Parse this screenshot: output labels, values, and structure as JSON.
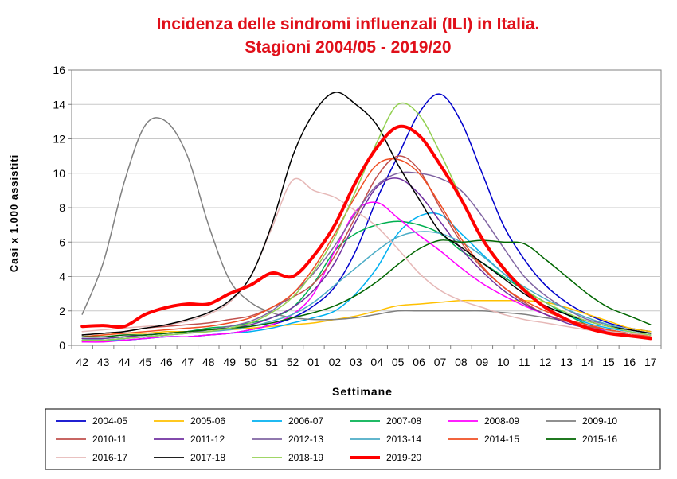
{
  "chart_data": {
    "type": "line",
    "title": "Incidenza delle sindromi influenzali (ILI) in Italia.",
    "subtitle": "Stagioni 2004/05 - 2019/20",
    "xlabel": "Settimane",
    "ylabel": "Casi x 1.000 assistiti",
    "categories": [
      "42",
      "43",
      "44",
      "45",
      "46",
      "47",
      "48",
      "49",
      "50",
      "51",
      "52",
      "01",
      "02",
      "03",
      "04",
      "05",
      "06",
      "07",
      "08",
      "09",
      "10",
      "11",
      "12",
      "13",
      "14",
      "15",
      "16",
      "17"
    ],
    "ylim": [
      0,
      16
    ],
    "yticks": [
      0,
      2,
      4,
      6,
      8,
      10,
      12,
      14,
      16
    ],
    "grid": true,
    "legend_position": "bottom",
    "series": [
      {
        "name": "2004-05",
        "color": "#0000cc",
        "values": [
          0.3,
          0.3,
          0.3,
          0.4,
          0.5,
          0.5,
          0.6,
          0.7,
          0.9,
          1.2,
          1.6,
          2.3,
          3.4,
          5.5,
          8.5,
          11.0,
          13.5,
          14.6,
          13.0,
          10.0,
          7.0,
          5.0,
          3.5,
          2.5,
          1.8,
          1.3,
          1.0,
          0.8
        ]
      },
      {
        "name": "2005-06",
        "color": "#ffc000",
        "values": [
          0.5,
          0.6,
          0.7,
          0.7,
          0.8,
          0.8,
          0.9,
          0.9,
          1.0,
          1.1,
          1.2,
          1.3,
          1.5,
          1.7,
          2.0,
          2.3,
          2.4,
          2.5,
          2.6,
          2.6,
          2.6,
          2.6,
          2.5,
          2.2,
          1.8,
          1.4,
          1.0,
          0.8
        ]
      },
      {
        "name": "2006-07",
        "color": "#00b0f0",
        "values": [
          0.3,
          0.3,
          0.3,
          0.4,
          0.5,
          0.5,
          0.6,
          0.7,
          0.8,
          1.0,
          1.3,
          1.6,
          2.0,
          3.0,
          4.5,
          6.5,
          7.5,
          7.6,
          6.5,
          5.3,
          4.2,
          3.2,
          2.5,
          1.8,
          1.3,
          1.0,
          0.8,
          0.6
        ]
      },
      {
        "name": "2007-08",
        "color": "#00b050",
        "values": [
          0.4,
          0.4,
          0.5,
          0.6,
          0.7,
          0.8,
          1.0,
          1.1,
          1.3,
          1.6,
          2.2,
          3.6,
          5.5,
          6.5,
          7.0,
          7.2,
          7.0,
          6.5,
          5.5,
          4.8,
          4.0,
          3.2,
          2.5,
          1.8,
          1.2,
          0.9,
          0.6,
          0.4
        ]
      },
      {
        "name": "2008-09",
        "color": "#ff00ff",
        "values": [
          0.2,
          0.2,
          0.3,
          0.4,
          0.5,
          0.5,
          0.6,
          0.7,
          0.9,
          1.2,
          1.8,
          3.0,
          5.5,
          7.8,
          8.3,
          7.4,
          6.4,
          5.5,
          4.5,
          3.6,
          2.9,
          2.3,
          1.8,
          1.4,
          1.1,
          0.8,
          0.6,
          0.4
        ]
      },
      {
        "name": "2009-10",
        "color": "#808080",
        "values": [
          1.8,
          4.8,
          9.5,
          12.8,
          13.0,
          11.0,
          7.0,
          3.8,
          2.5,
          1.9,
          1.6,
          1.5,
          1.5,
          1.6,
          1.8,
          2.0,
          2.0,
          2.0,
          2.0,
          2.0,
          1.9,
          1.8,
          1.6,
          1.4,
          1.1,
          0.9,
          0.7,
          0.6
        ]
      },
      {
        "name": "2010-11",
        "color": "#c0504d",
        "values": [
          0.6,
          0.7,
          0.8,
          1.0,
          1.1,
          1.2,
          1.3,
          1.5,
          1.7,
          2.2,
          2.8,
          3.6,
          5.2,
          7.5,
          9.8,
          11.0,
          10.2,
          8.0,
          6.0,
          4.5,
          3.4,
          2.5,
          1.8,
          1.4,
          1.1,
          0.9,
          0.7,
          0.5
        ]
      },
      {
        "name": "2011-12",
        "color": "#7030a0",
        "values": [
          0.4,
          0.4,
          0.5,
          0.6,
          0.7,
          0.8,
          0.9,
          1.0,
          1.2,
          1.6,
          2.2,
          3.2,
          4.8,
          7.2,
          9.2,
          9.7,
          8.8,
          7.2,
          5.6,
          4.3,
          3.2,
          2.4,
          1.8,
          1.3,
          1.0,
          0.8,
          0.6,
          0.5
        ]
      },
      {
        "name": "2012-13",
        "color": "#8064a2",
        "values": [
          0.3,
          0.3,
          0.4,
          0.5,
          0.6,
          0.7,
          0.9,
          1.1,
          1.4,
          2.0,
          3.0,
          4.2,
          5.8,
          7.7,
          9.3,
          10.0,
          10.0,
          9.7,
          9.0,
          7.5,
          5.7,
          4.0,
          2.9,
          2.1,
          1.5,
          1.2,
          0.9,
          0.7
        ]
      },
      {
        "name": "2013-14",
        "color": "#4bacc6",
        "values": [
          0.3,
          0.3,
          0.4,
          0.5,
          0.6,
          0.7,
          0.8,
          0.9,
          1.1,
          1.4,
          1.8,
          2.5,
          3.5,
          4.5,
          5.5,
          6.3,
          6.6,
          6.5,
          6.0,
          5.2,
          4.2,
          3.4,
          2.7,
          2.1,
          1.6,
          1.2,
          0.9,
          0.7
        ]
      },
      {
        "name": "2014-15",
        "color": "#f04e23",
        "values": [
          0.5,
          0.6,
          0.7,
          0.8,
          0.9,
          1.0,
          1.1,
          1.3,
          1.6,
          2.2,
          3.0,
          4.5,
          6.5,
          8.7,
          10.5,
          10.8,
          10.0,
          8.2,
          6.2,
          4.6,
          3.4,
          2.6,
          2.0,
          1.5,
          1.2,
          0.9,
          0.7,
          0.5
        ]
      },
      {
        "name": "2015-16",
        "color": "#006600",
        "values": [
          0.5,
          0.5,
          0.6,
          0.6,
          0.7,
          0.8,
          0.9,
          1.0,
          1.1,
          1.3,
          1.6,
          1.9,
          2.3,
          2.9,
          3.7,
          4.7,
          5.6,
          6.1,
          6.0,
          6.1,
          6.0,
          5.9,
          5.0,
          4.0,
          3.0,
          2.2,
          1.7,
          1.2
        ]
      },
      {
        "name": "2016-17",
        "color": "#e6b8b7",
        "values": [
          0.8,
          0.9,
          1.0,
          1.1,
          1.2,
          1.4,
          1.8,
          2.5,
          4.0,
          6.8,
          9.6,
          9.0,
          8.6,
          7.8,
          6.9,
          5.6,
          4.2,
          3.2,
          2.6,
          2.2,
          1.8,
          1.5,
          1.3,
          1.1,
          0.9,
          0.8,
          0.7,
          0.6
        ]
      },
      {
        "name": "2017-18",
        "color": "#000000",
        "values": [
          0.6,
          0.7,
          0.8,
          1.0,
          1.2,
          1.5,
          1.9,
          2.6,
          4.0,
          7.0,
          11.0,
          13.5,
          14.7,
          14.0,
          12.8,
          10.5,
          8.5,
          6.6,
          5.7,
          4.8,
          3.9,
          3.0,
          2.3,
          1.8,
          1.4,
          1.1,
          0.9,
          0.7
        ]
      },
      {
        "name": "2018-19",
        "color": "#92d050",
        "values": [
          0.3,
          0.3,
          0.4,
          0.5,
          0.6,
          0.7,
          0.8,
          1.0,
          1.3,
          1.9,
          2.8,
          4.3,
          6.3,
          9.0,
          11.8,
          14.0,
          13.4,
          11.2,
          8.6,
          6.3,
          4.6,
          3.3,
          2.5,
          1.9,
          1.4,
          1.1,
          0.8,
          0.6
        ]
      },
      {
        "name": "2019-20",
        "color": "#ff0000",
        "values": [
          1.1,
          1.15,
          1.1,
          1.8,
          2.2,
          2.4,
          2.4,
          3.0,
          3.5,
          4.2,
          4.0,
          5.2,
          7.0,
          9.5,
          11.5,
          12.7,
          12.2,
          10.5,
          8.5,
          6.2,
          4.5,
          3.2,
          2.2,
          1.5,
          1.0,
          0.7,
          0.55,
          0.4
        ]
      }
    ]
  }
}
